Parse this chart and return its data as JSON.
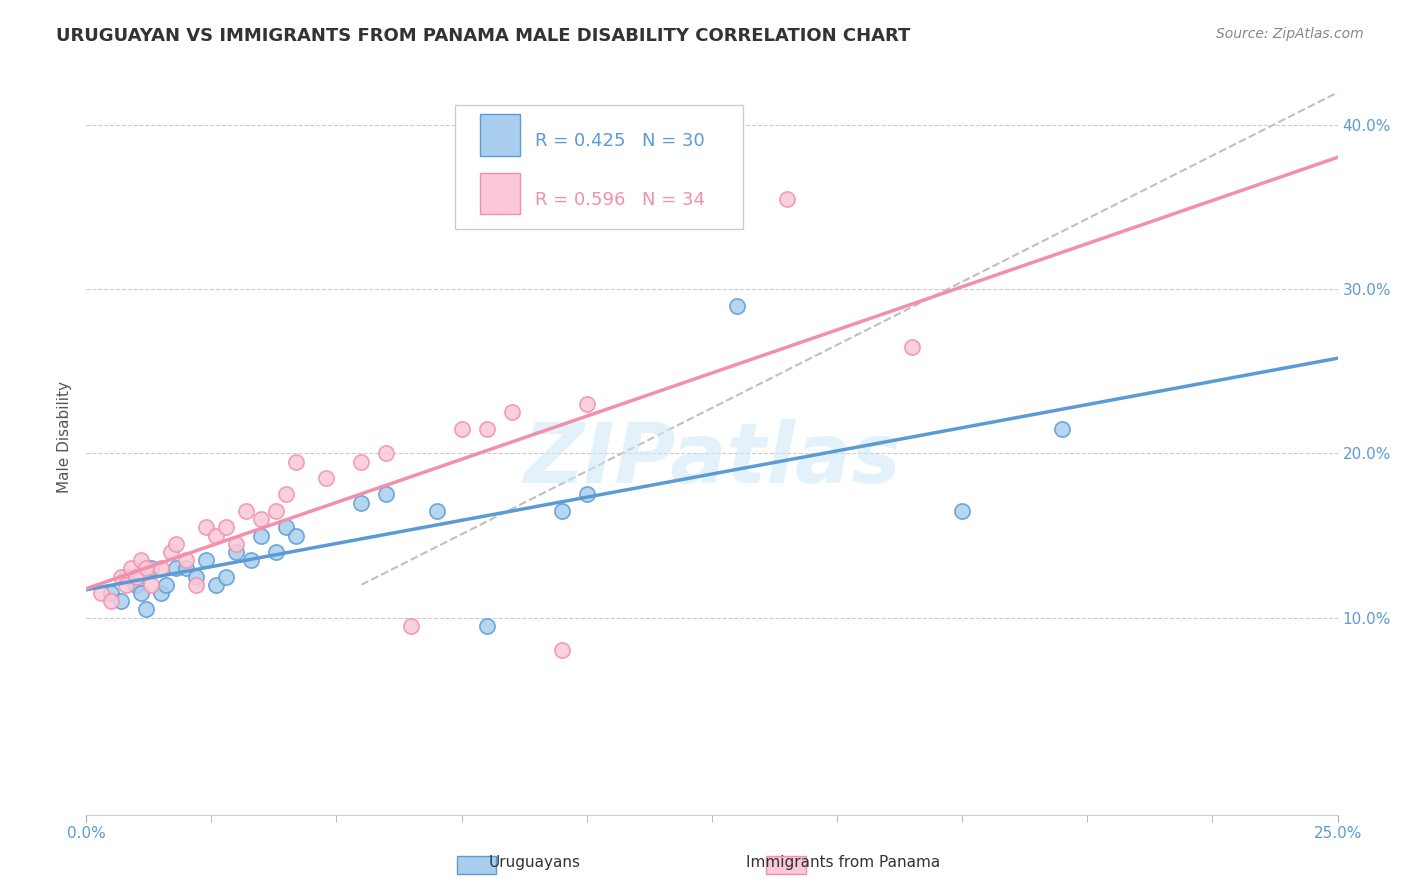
{
  "title": "URUGUAYAN VS IMMIGRANTS FROM PANAMA MALE DISABILITY CORRELATION CHART",
  "source": "Source: ZipAtlas.com",
  "ylabel": "Male Disability",
  "R_blue": 0.425,
  "N_blue": 30,
  "R_pink": 0.596,
  "N_pink": 34,
  "blue_color": "#5b9bd5",
  "pink_color": "#f28fad",
  "xmin": 0.0,
  "xmax": 0.25,
  "ymin": -0.02,
  "ymax": 0.44,
  "right_yticks": [
    0.1,
    0.2,
    0.3,
    0.4
  ],
  "right_yticklabels": [
    "10.0%",
    "20.0%",
    "30.0%",
    "40.0%"
  ],
  "watermark": "ZIPatlas",
  "blue_scatter_x": [
    0.005,
    0.007,
    0.008,
    0.01,
    0.011,
    0.012,
    0.013,
    0.015,
    0.016,
    0.018,
    0.02,
    0.022,
    0.024,
    0.026,
    0.028,
    0.03,
    0.033,
    0.035,
    0.038,
    0.04,
    0.042,
    0.055,
    0.06,
    0.07,
    0.08,
    0.095,
    0.1,
    0.13,
    0.175,
    0.195
  ],
  "blue_scatter_y": [
    0.115,
    0.11,
    0.125,
    0.12,
    0.115,
    0.105,
    0.13,
    0.115,
    0.12,
    0.13,
    0.13,
    0.125,
    0.135,
    0.12,
    0.125,
    0.14,
    0.135,
    0.15,
    0.14,
    0.155,
    0.15,
    0.17,
    0.175,
    0.165,
    0.095,
    0.165,
    0.175,
    0.29,
    0.165,
    0.215
  ],
  "pink_scatter_x": [
    0.003,
    0.005,
    0.007,
    0.008,
    0.009,
    0.01,
    0.011,
    0.012,
    0.013,
    0.015,
    0.017,
    0.018,
    0.02,
    0.022,
    0.024,
    0.026,
    0.028,
    0.03,
    0.032,
    0.035,
    0.038,
    0.04,
    0.042,
    0.048,
    0.055,
    0.06,
    0.065,
    0.075,
    0.08,
    0.085,
    0.095,
    0.1,
    0.14,
    0.165
  ],
  "pink_scatter_y": [
    0.115,
    0.11,
    0.125,
    0.12,
    0.13,
    0.125,
    0.135,
    0.13,
    0.12,
    0.13,
    0.14,
    0.145,
    0.135,
    0.12,
    0.155,
    0.15,
    0.155,
    0.145,
    0.165,
    0.16,
    0.165,
    0.175,
    0.195,
    0.185,
    0.195,
    0.2,
    0.095,
    0.215,
    0.215,
    0.225,
    0.08,
    0.23,
    0.355,
    0.265
  ],
  "title_fontsize": 13,
  "axis_label_fontsize": 11,
  "tick_fontsize": 11,
  "legend_fontsize": 13,
  "source_fontsize": 10
}
